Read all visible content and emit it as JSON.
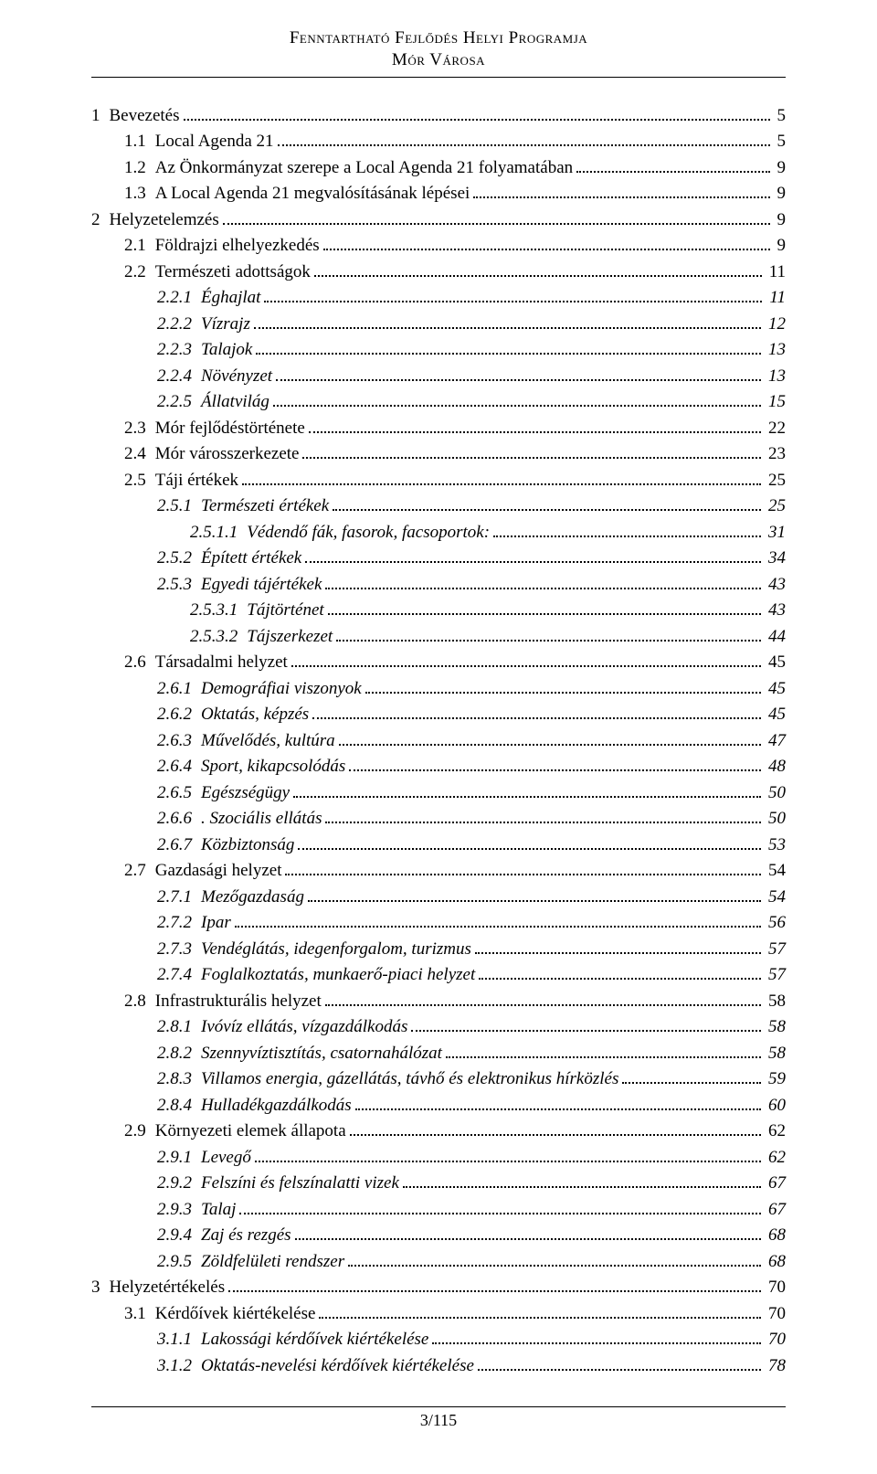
{
  "header": {
    "line1": "Fenntartható Fejlődés Helyi Programja",
    "line2": "Mór Városa"
  },
  "footer": {
    "text": "3/115"
  },
  "toc": [
    {
      "level": 1,
      "italic": false,
      "num": "1",
      "title": "Bevezetés",
      "page": "5"
    },
    {
      "level": 2,
      "italic": false,
      "num": "1.1",
      "title": "Local Agenda 21",
      "page": "5"
    },
    {
      "level": 2,
      "italic": false,
      "num": "1.2",
      "title": "Az Önkormányzat szerepe a Local Agenda 21 folyamatában",
      "page": "9"
    },
    {
      "level": 2,
      "italic": false,
      "num": "1.3",
      "title": "A Local Agenda 21 megvalósításának lépései",
      "page": "9"
    },
    {
      "level": 1,
      "italic": false,
      "num": "2",
      "title": "Helyzetelemzés",
      "page": "9"
    },
    {
      "level": 2,
      "italic": false,
      "num": "2.1",
      "title": "Földrajzi elhelyezkedés",
      "page": "9"
    },
    {
      "level": 2,
      "italic": false,
      "num": "2.2",
      "title": "Természeti adottságok",
      "page": "11"
    },
    {
      "level": 3,
      "italic": true,
      "num": "2.2.1",
      "title": "Éghajlat",
      "page": "11"
    },
    {
      "level": 3,
      "italic": true,
      "num": "2.2.2",
      "title": "Vízrajz",
      "page": "12"
    },
    {
      "level": 3,
      "italic": true,
      "num": "2.2.3",
      "title": "Talajok",
      "page": "13"
    },
    {
      "level": 3,
      "italic": true,
      "num": "2.2.4",
      "title": "Növényzet",
      "page": "13"
    },
    {
      "level": 3,
      "italic": true,
      "num": "2.2.5",
      "title": "Állatvilág",
      "page": "15"
    },
    {
      "level": 2,
      "italic": false,
      "num": "2.3",
      "title": "Mór fejlődéstörténete",
      "page": "22"
    },
    {
      "level": 2,
      "italic": false,
      "num": "2.4",
      "title": "Mór városszerkezete",
      "page": "23"
    },
    {
      "level": 2,
      "italic": false,
      "num": "2.5",
      "title": "Táji értékek",
      "page": "25"
    },
    {
      "level": 3,
      "italic": true,
      "num": "2.5.1",
      "title": "Természeti értékek",
      "page": "25"
    },
    {
      "level": 4,
      "italic": true,
      "num": "2.5.1.1",
      "title": "Védendő fák, fasorok, facsoportok:",
      "page": "31"
    },
    {
      "level": 3,
      "italic": true,
      "num": "2.5.2",
      "title": "Épített értékek",
      "page": "34"
    },
    {
      "level": 3,
      "italic": true,
      "num": "2.5.3",
      "title": "Egyedi tájértékek",
      "page": "43"
    },
    {
      "level": 4,
      "italic": true,
      "num": "2.5.3.1",
      "title": "Tájtörténet",
      "page": "43"
    },
    {
      "level": 4,
      "italic": true,
      "num": "2.5.3.2",
      "title": "Tájszerkezet",
      "page": "44"
    },
    {
      "level": 2,
      "italic": false,
      "num": "2.6",
      "title": "Társadalmi helyzet",
      "page": "45"
    },
    {
      "level": 3,
      "italic": true,
      "num": "2.6.1",
      "title": "Demográfiai viszonyok",
      "page": "45"
    },
    {
      "level": 3,
      "italic": true,
      "num": "2.6.2",
      "title": "Oktatás, képzés",
      "page": "45"
    },
    {
      "level": 3,
      "italic": true,
      "num": "2.6.3",
      "title": "Művelődés, kultúra",
      "page": "47"
    },
    {
      "level": 3,
      "italic": true,
      "num": "2.6.4",
      "title": "Sport, kikapcsolódás",
      "page": "48"
    },
    {
      "level": 3,
      "italic": true,
      "num": "2.6.5",
      "title": "Egészségügy",
      "page": "50"
    },
    {
      "level": 3,
      "italic": true,
      "num": "2.6.6",
      "title": ". Szociális ellátás",
      "page": "50"
    },
    {
      "level": 3,
      "italic": true,
      "num": "2.6.7",
      "title": "Közbiztonság",
      "page": "53"
    },
    {
      "level": 2,
      "italic": false,
      "num": "2.7",
      "title": "Gazdasági helyzet",
      "page": "54"
    },
    {
      "level": 3,
      "italic": true,
      "num": "2.7.1",
      "title": "Mezőgazdaság",
      "page": "54"
    },
    {
      "level": 3,
      "italic": true,
      "num": "2.7.2",
      "title": "Ipar",
      "page": "56"
    },
    {
      "level": 3,
      "italic": true,
      "num": "2.7.3",
      "title": "Vendéglátás, idegenforgalom, turizmus",
      "page": "57"
    },
    {
      "level": 3,
      "italic": true,
      "num": "2.7.4",
      "title": "Foglalkoztatás, munkaerő-piaci helyzet",
      "page": "57"
    },
    {
      "level": 2,
      "italic": false,
      "num": "2.8",
      "title": "Infrastrukturális helyzet",
      "page": "58"
    },
    {
      "level": 3,
      "italic": true,
      "num": "2.8.1",
      "title": "Ivóvíz ellátás, vízgazdálkodás",
      "page": "58"
    },
    {
      "level": 3,
      "italic": true,
      "num": "2.8.2",
      "title": "Szennyvíztisztítás, csatornahálózat",
      "page": "58"
    },
    {
      "level": 3,
      "italic": true,
      "num": "2.8.3",
      "title": "Villamos energia, gázellátás, távhő és elektronikus hírközlés",
      "page": "59"
    },
    {
      "level": 3,
      "italic": true,
      "num": "2.8.4",
      "title": "Hulladékgazdálkodás",
      "page": "60"
    },
    {
      "level": 2,
      "italic": false,
      "num": "2.9",
      "title": "Környezeti elemek állapota",
      "page": "62"
    },
    {
      "level": 3,
      "italic": true,
      "num": "2.9.1",
      "title": "Levegő",
      "page": "62"
    },
    {
      "level": 3,
      "italic": true,
      "num": "2.9.2",
      "title": "Felszíni és felszínalatti vizek",
      "page": "67"
    },
    {
      "level": 3,
      "italic": true,
      "num": "2.9.3",
      "title": "Talaj",
      "page": "67"
    },
    {
      "level": 3,
      "italic": true,
      "num": "2.9.4",
      "title": "Zaj és rezgés",
      "page": "68"
    },
    {
      "level": 3,
      "italic": true,
      "num": "2.9.5",
      "title": "Zöldfelületi rendszer",
      "page": "68"
    },
    {
      "level": 1,
      "italic": false,
      "num": "3",
      "title": "Helyzetértékelés",
      "page": "70"
    },
    {
      "level": 2,
      "italic": false,
      "num": "3.1",
      "title": "Kérdőívek kiértékelése",
      "page": "70"
    },
    {
      "level": 3,
      "italic": true,
      "num": "3.1.1",
      "title": "Lakossági kérdőívek kiértékelése",
      "page": "70"
    },
    {
      "level": 3,
      "italic": true,
      "num": "3.1.2",
      "title": "Oktatás-nevelési kérdőívek kiértékelése",
      "page": "78"
    }
  ]
}
